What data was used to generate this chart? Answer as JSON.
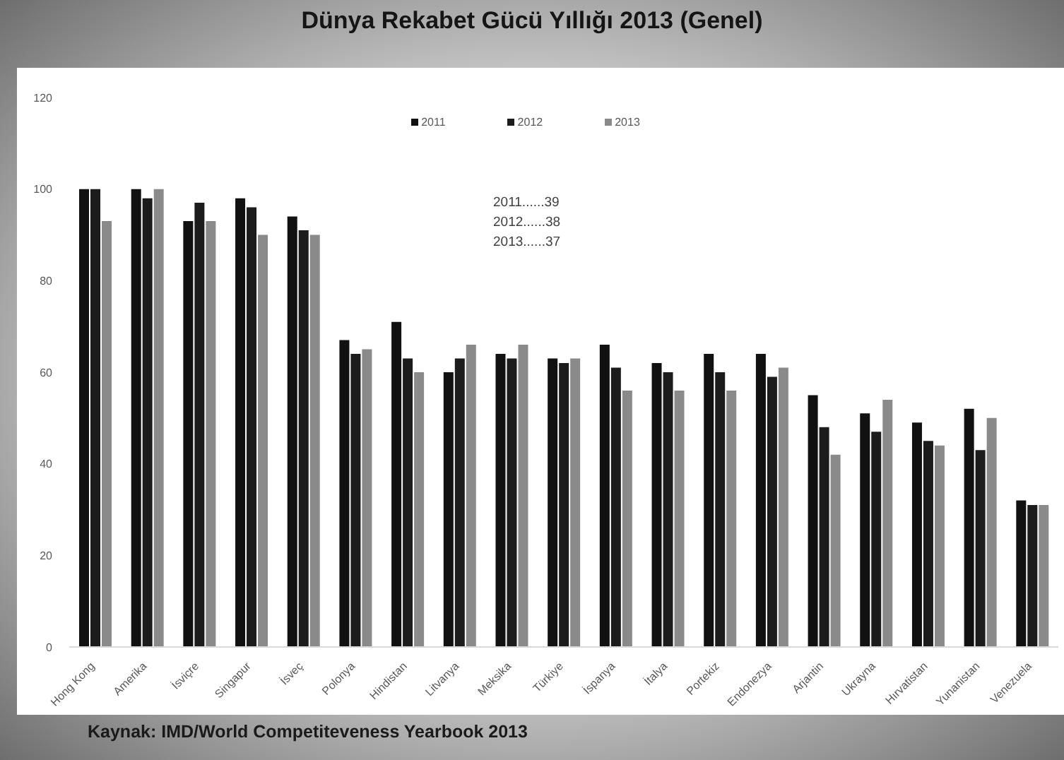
{
  "chart_data": {
    "type": "bar",
    "title": "Dünya Rekabet Gücü Yıllığı 2013 (Genel)",
    "categories": [
      "Hong Kong",
      "Amerika",
      "İsviçre",
      "Singapur",
      "İsveç",
      "Polonya",
      "Hindistan",
      "Litvanya",
      "Meksika",
      "Türkiye",
      "İspanya",
      "İtalya",
      "Portekiz",
      "Endonezya",
      "Arjantin",
      "Ukrayna",
      "Hırvatistan",
      "Yunanistan",
      "Venezuela"
    ],
    "series": [
      {
        "name": "2011",
        "color": "#111111",
        "values": [
          100,
          100,
          93,
          98,
          94,
          67,
          71,
          60,
          64,
          63,
          66,
          62,
          64,
          64,
          55,
          51,
          49,
          52,
          32
        ]
      },
      {
        "name": "2012",
        "color": "#1c1c1c",
        "values": [
          100,
          98,
          97,
          96,
          91,
          64,
          63,
          63,
          63,
          62,
          61,
          60,
          60,
          59,
          48,
          47,
          45,
          43,
          31
        ]
      },
      {
        "name": "2013",
        "color": "#8a8a8a",
        "values": [
          93,
          100,
          93,
          90,
          90,
          65,
          60,
          66,
          66,
          63,
          56,
          56,
          56,
          61,
          42,
          54,
          44,
          50,
          31
        ]
      }
    ],
    "ylim": [
      0,
      120
    ],
    "yticks": [
      0,
      20,
      40,
      60,
      80,
      100,
      120
    ],
    "grid": false,
    "legend": "top",
    "annotations": [
      "2011......39",
      "2012......38",
      "2013......37",
      "Kaynak: IMD/World Competiteveness Yearbook 2013"
    ]
  }
}
